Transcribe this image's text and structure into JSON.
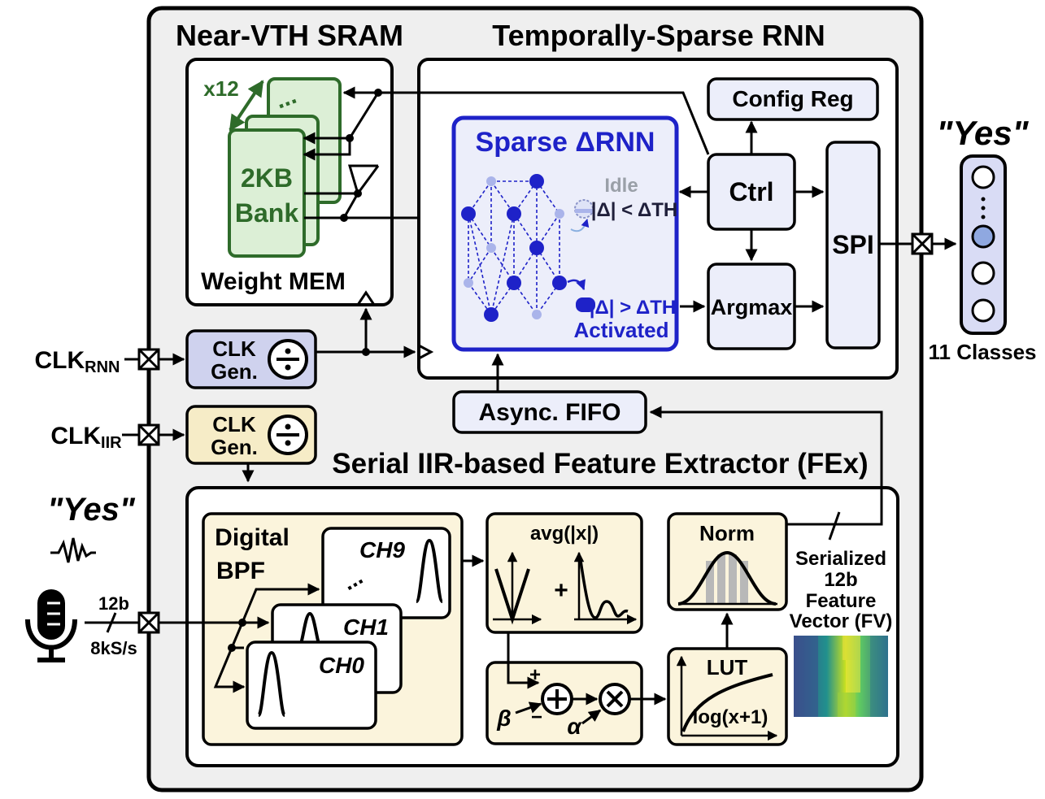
{
  "sections": {
    "sram_title": "Near-VTH SRAM",
    "rnn_title": "Temporally-Sparse RNN",
    "fex_title": "Serial IIR-based Feature Extractor (FEx)"
  },
  "sram": {
    "replicate": "x12",
    "dots": "...",
    "bank_line1": "2KB",
    "bank_line2": "Bank",
    "label": "Weight MEM"
  },
  "rnn": {
    "sparse_title": "Sparse ΔRNN",
    "idle_label": "Idle",
    "idle_condition": "|Δ| < ΔTH",
    "active_condition": "|Δ| > ΔTH",
    "activated_label": "Activated",
    "config_reg": "Config Reg",
    "ctrl": "Ctrl",
    "argmax": "Argmax",
    "spi": "SPI"
  },
  "clocks": {
    "clk_rnn_label": "CLKRNN",
    "clk_iir_label": "CLKIIR",
    "gen_line1": "CLK",
    "gen_line2": "Gen."
  },
  "fifo": "Async. FIFO",
  "fex": {
    "bpf_line1": "Digital",
    "bpf_line2": "BPF",
    "ch9": "CH9",
    "ch1": "CH1",
    "ch0": "CH0",
    "ch_dots": "...",
    "avg": "avg(|x|)",
    "plus": "+",
    "beta": "β",
    "alpha": "α",
    "sum_plus": "+",
    "sum_minus": "−",
    "norm": "Norm",
    "lut": "LUT",
    "log": "log(x+1)",
    "fv_line1": "Serialized",
    "fv_line2": "12b",
    "fv_line3": "Feature",
    "fv_line4": "Vector (FV)"
  },
  "input": {
    "word": "\"Yes\"",
    "bits": "12b",
    "rate": "8kS/s"
  },
  "output": {
    "word": "\"Yes\"",
    "classes": "11 Classes"
  },
  "colors": {
    "chip_bg": "#efefef",
    "sram_green": "#2e6b2a",
    "sram_fill": "#dcefd6",
    "rnn_blue": "#1e22c8",
    "block_fill": "#eceefa",
    "clk_rnn_fill": "#cfd2ee",
    "clk_iir_fill": "#f6ecc7",
    "fex_fill": "#fbf4dc"
  }
}
